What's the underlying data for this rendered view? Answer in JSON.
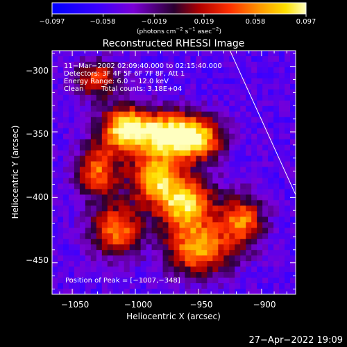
{
  "chart_data": {
    "type": "heatmap",
    "title": "Reconstructed RHESSI Image",
    "xlabel": "Heliocentric X (arcsec)",
    "ylabel": "Heliocentric Y (arcsec)",
    "xlim": [
      -1066,
      -873
    ],
    "ylim": [
      -474,
      -288
    ],
    "x_ticks": [
      -1050,
      -1000,
      -950,
      -900
    ],
    "y_ticks": [
      -300,
      -350,
      -400,
      -450
    ],
    "x_tick_labels": [
      "−1050",
      "−1000",
      "−950",
      "−900"
    ],
    "y_tick_labels": [
      "−300",
      "−350",
      "−400",
      "−450"
    ],
    "colorbar": {
      "range": [
        -0.097,
        0.097
      ],
      "ticks": [
        -0.097,
        -0.058,
        -0.019,
        0.019,
        0.058,
        0.097
      ],
      "tick_labels": [
        "−0.097",
        "−0.058",
        "−0.019",
        "0.019",
        "0.058",
        "0.097"
      ],
      "unit_prefix": "(photons cm",
      "unit_exp1": "−2",
      "unit_mid": " s",
      "unit_exp2": "−1",
      "unit_mid2": " asec",
      "unit_exp3": "−2",
      "unit_suffix": ")"
    },
    "annotations": {
      "time_range": "11−Mar−2002 02:09:40.000 to 02:15:40.000",
      "detectors": "Detectors: 3F 4F 5F 6F 7F 8F, Att 1",
      "energy": "Energy Range: 6.0 − 12.0 keV",
      "clean": "Clean",
      "total_counts": "Total counts: 3.18E+04",
      "peak": "Position of Peak = [−1007,−348]"
    },
    "peak": {
      "x": -1007,
      "y": -348
    },
    "limb_line": {
      "x": [
        -925,
        -873
      ],
      "y": [
        -288,
        -398
      ]
    },
    "sources": [
      {
        "x": -1007,
        "y": -348,
        "sx": 14,
        "sy": 12,
        "amp": 0.097
      },
      {
        "x": -975,
        "y": -352,
        "sx": 14,
        "sy": 12,
        "amp": 0.075
      },
      {
        "x": -950,
        "y": -355,
        "sx": 14,
        "sy": 12,
        "amp": 0.07
      },
      {
        "x": -960,
        "y": -405,
        "sx": 16,
        "sy": 14,
        "amp": 0.075
      },
      {
        "x": -985,
        "y": -385,
        "sx": 14,
        "sy": 14,
        "amp": 0.06
      },
      {
        "x": -950,
        "y": -440,
        "sx": 18,
        "sy": 14,
        "amp": 0.06
      },
      {
        "x": -1015,
        "y": -425,
        "sx": 14,
        "sy": 14,
        "amp": 0.05
      },
      {
        "x": -1030,
        "y": -380,
        "sx": 12,
        "sy": 14,
        "amp": 0.045
      },
      {
        "x": -915,
        "y": -418,
        "sx": 12,
        "sy": 14,
        "amp": 0.045
      },
      {
        "x": -1030,
        "y": -310,
        "sx": 12,
        "sy": 10,
        "amp": 0.035
      }
    ],
    "background_level": -0.05
  },
  "footer": {
    "datetime": "27−Apr−2022 19:09"
  }
}
